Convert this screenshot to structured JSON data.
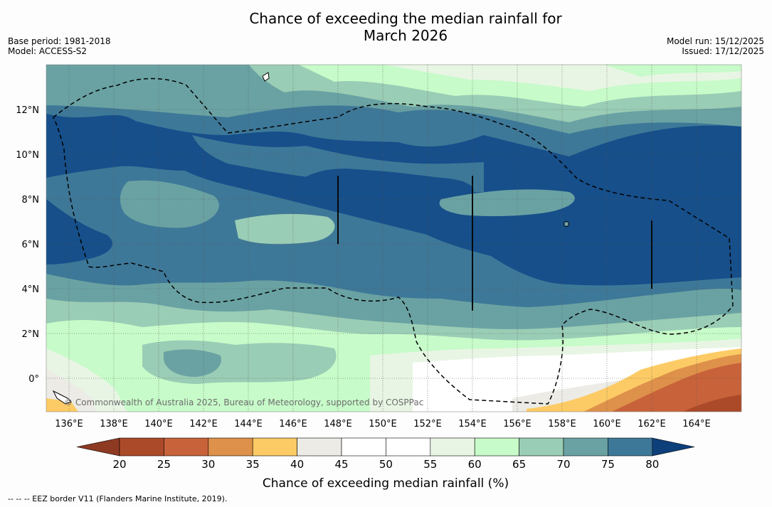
{
  "header": {
    "title_line1": "Chance of exceeding the median rainfall for",
    "title_line2": "March 2026",
    "base_period": "Base period: 1981-2018",
    "model": "Model: ACCESS-S2",
    "model_run": "Model run: 15/12/2025",
    "issued": "Issued: 17/12/2025"
  },
  "map": {
    "lat_labels": [
      "12°N",
      "10°N",
      "8°N",
      "6°N",
      "4°N",
      "2°N",
      "0°"
    ],
    "lon_labels": [
      "136°E",
      "138°E",
      "140°E",
      "142°E",
      "144°E",
      "146°E",
      "148°E",
      "150°E",
      "152°E",
      "154°E",
      "156°E",
      "158°E",
      "160°E",
      "162°E",
      "164°E"
    ],
    "attribution": "© Commonwealth of Australia 2025, Bureau of Meteorology, supported by COSPPac"
  },
  "legend": {
    "ticks": [
      "20",
      "25",
      "30",
      "35",
      "40",
      "45",
      "50",
      "55",
      "60",
      "65",
      "70",
      "75",
      "80"
    ],
    "label": "Chance of exceeding median rainfall (%)",
    "colors": [
      "#ab4a29",
      "#c8623a",
      "#de914a",
      "#fdcb65",
      "#ecebe6",
      "#ffffff",
      "#ffffff",
      "#e8f5e4",
      "#c7fbc9",
      "#9acdb5",
      "#6aa2a3",
      "#3e7898",
      "#164f8a"
    ],
    "low_color": "#8e3a22",
    "high_color": "#0d3f7a"
  },
  "footer": {
    "eez_note": "-- -- -- EEZ border V11 (Flanders Marine Institute, 2019)."
  }
}
